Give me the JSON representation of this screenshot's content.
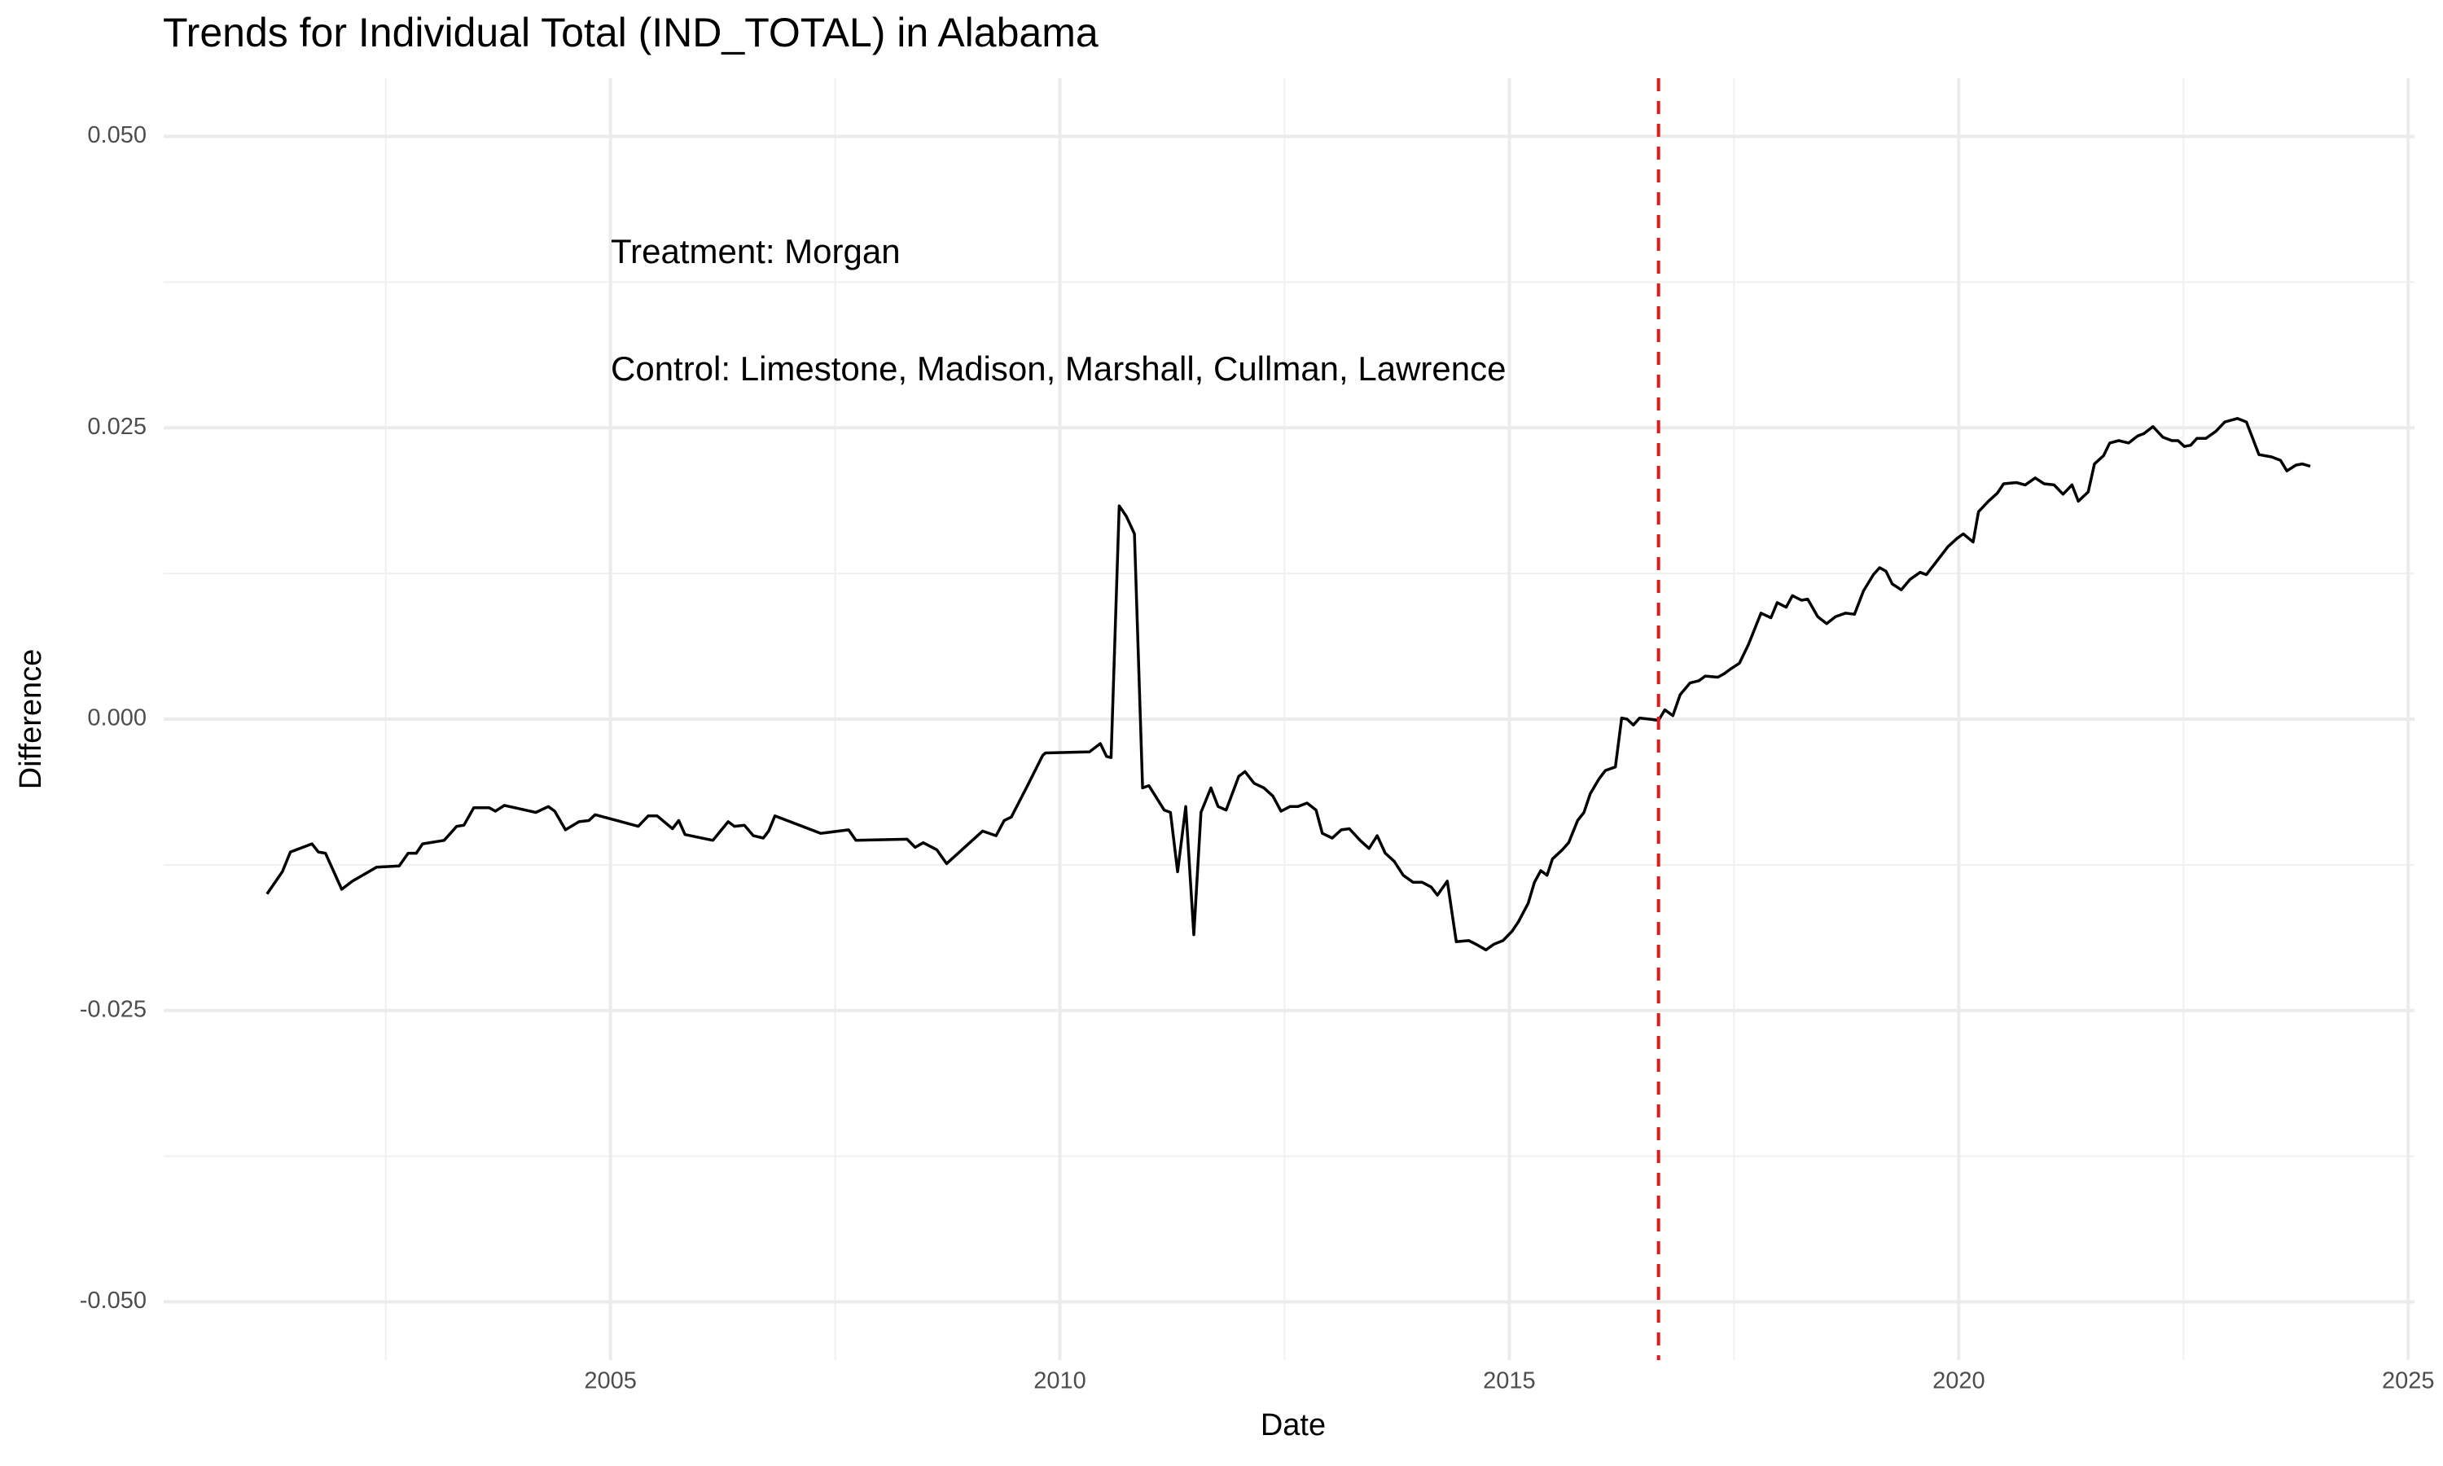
{
  "chart_data": {
    "type": "line",
    "title": "Trends for Individual Total (IND_TOTAL) in Alabama",
    "x_label": "Date",
    "y_label": "Difference",
    "annotations": [
      "Treatment: Morgan",
      "Control: Limestone, Madison, Marshall, Cullman, Lawrence"
    ],
    "color": "#000000",
    "vline": {
      "x": 2016.66,
      "color": "#e31a1c",
      "style": "dashed"
    },
    "grid": true,
    "minor_grid": true,
    "xlim": [
      2000.03,
      2025.07
    ],
    "ylim": [
      -0.055,
      0.055
    ],
    "xticks": [
      2005,
      2010,
      2015,
      2020,
      2025
    ],
    "yticks": [
      {
        "value": -0.05,
        "label": "-0.050"
      },
      {
        "value": -0.025,
        "label": "-0.025"
      },
      {
        "value": 0,
        "label": "0.000"
      },
      {
        "value": 0.025,
        "label": "0.025"
      },
      {
        "value": 0.05,
        "label": "0.050"
      }
    ],
    "x": [
      2001.18,
      2001.35,
      2001.44,
      2001.68,
      2001.75,
      2001.83,
      2002.01,
      2002.13,
      2002.4,
      2002.65,
      2002.75,
      2002.84,
      2002.91,
      2003.15,
      2003.29,
      2003.37,
      2003.48,
      2003.65,
      2003.72,
      2003.82,
      2004.17,
      2004.31,
      2004.38,
      2004.5,
      2004.65,
      2004.76,
      2004.83,
      2005.31,
      2005.42,
      2005.52,
      2005.69,
      2005.76,
      2005.83,
      2006.14,
      2006.31,
      2006.38,
      2006.49,
      2006.59,
      2006.7,
      2006.76,
      2006.83,
      2007.34,
      2007.65,
      2007.73,
      2008.3,
      2008.39,
      2008.48,
      2008.63,
      2008.74,
      2009.14,
      2009.29,
      2009.38,
      2009.46,
      2009.64,
      2009.81,
      2009.84,
      2010.33,
      2010.45,
      2010.52,
      2010.57,
      2010.66,
      2010.74,
      2010.83,
      2010.92,
      2010.99,
      2011.16,
      2011.23,
      2011.31,
      2011.4,
      2011.49,
      2011.57,
      2011.68,
      2011.76,
      2011.85,
      2011.99,
      2012.06,
      2012.16,
      2012.27,
      2012.37,
      2012.46,
      2012.56,
      2012.65,
      2012.75,
      2012.85,
      2012.92,
      2013.03,
      2013.13,
      2013.22,
      2013.34,
      2013.44,
      2013.53,
      2013.62,
      2013.72,
      2013.82,
      2013.93,
      2014.03,
      2014.13,
      2014.2,
      2014.31,
      2014.41,
      2014.55,
      2014.65,
      2014.74,
      2014.83,
      2014.93,
      2015.03,
      2015.1,
      2015.21,
      2015.28,
      2015.35,
      2015.42,
      2015.48,
      2015.59,
      2015.66,
      2015.76,
      2015.83,
      2015.9,
      2016.0,
      2016.07,
      2016.18,
      2016.25,
      2016.31,
      2016.38,
      2016.45,
      2016.56,
      2016.66,
      2016.73,
      2016.82,
      2016.9,
      2017.01,
      2017.11,
      2017.18,
      2017.32,
      2017.39,
      2017.46,
      2017.56,
      2017.66,
      2017.8,
      2017.91,
      2017.98,
      2018.08,
      2018.15,
      2018.25,
      2018.32,
      2018.43,
      2018.53,
      2018.63,
      2018.74,
      2018.84,
      2018.94,
      2019.05,
      2019.12,
      2019.19,
      2019.26,
      2019.36,
      2019.46,
      2019.57,
      2019.64,
      2019.78,
      2019.88,
      2019.98,
      2020.05,
      2020.16,
      2020.22,
      2020.33,
      2020.43,
      2020.5,
      2020.64,
      2020.74,
      2020.85,
      2020.95,
      2021.06,
      2021.16,
      2021.26,
      2021.33,
      2021.44,
      2021.51,
      2021.61,
      2021.68,
      2021.78,
      2021.89,
      2021.99,
      2022.06,
      2022.16,
      2022.27,
      2022.37,
      2022.44,
      2022.51,
      2022.58,
      2022.65,
      2022.75,
      2022.86,
      2022.96,
      2023.1,
      2023.2,
      2023.34,
      2023.48,
      2023.58,
      2023.65,
      2023.75,
      2023.82,
      2023.91
    ],
    "values": [
      -0.015,
      -0.0131,
      -0.0114,
      -0.0107,
      -0.0114,
      -0.0115,
      -0.0146,
      -0.0139,
      -0.0127,
      -0.0126,
      -0.0115,
      -0.0115,
      -0.0107,
      -0.0104,
      -0.0092,
      -0.0091,
      -0.0076,
      -0.0076,
      -0.0079,
      -0.0074,
      -0.008,
      -0.0075,
      -0.0079,
      -0.0095,
      -0.0088,
      -0.0087,
      -0.0082,
      -0.0092,
      -0.0083,
      -0.0083,
      -0.0094,
      -0.0087,
      -0.0099,
      -0.0104,
      -0.0088,
      -0.0092,
      -0.0091,
      -0.01,
      -0.0102,
      -0.0096,
      -0.0083,
      -0.0098,
      -0.0095,
      -0.0104,
      -0.0103,
      -0.011,
      -0.0106,
      -0.0112,
      -0.0124,
      -0.0096,
      -0.01,
      -0.0087,
      -0.0084,
      -0.0057,
      -0.0031,
      -0.0029,
      -0.0028,
      -0.0021,
      -0.0032,
      -0.0033,
      0.0183,
      0.0174,
      0.0159,
      -0.0059,
      -0.0057,
      -0.0078,
      -0.008,
      -0.0131,
      -0.0075,
      -0.0185,
      -0.008,
      -0.0059,
      -0.0075,
      -0.0078,
      -0.0049,
      -0.0045,
      -0.0055,
      -0.0059,
      -0.0066,
      -0.0079,
      -0.0075,
      -0.0075,
      -0.0072,
      -0.0078,
      -0.0098,
      -0.0102,
      -0.0095,
      -0.0094,
      -0.0104,
      -0.0111,
      -0.01,
      -0.0115,
      -0.0122,
      -0.0134,
      -0.014,
      -0.014,
      -0.0144,
      -0.0151,
      -0.0139,
      -0.0191,
      -0.019,
      -0.0194,
      -0.0198,
      -0.0193,
      -0.019,
      -0.0182,
      -0.0174,
      -0.0158,
      -0.014,
      -0.013,
      -0.0134,
      -0.012,
      -0.0112,
      -0.0106,
      -0.0087,
      -0.008,
      -0.0064,
      -0.0051,
      -0.0044,
      -0.0041,
      0.0001,
      0.0,
      -0.0005,
      0.0001,
      0.0,
      -0.0001,
      0.0008,
      0.0003,
      0.0021,
      0.0031,
      0.0033,
      0.0037,
      0.0036,
      0.0039,
      0.0043,
      0.0048,
      0.0064,
      0.0091,
      0.0087,
      0.01,
      0.0096,
      0.0106,
      0.0102,
      0.0103,
      0.0088,
      0.0082,
      0.0088,
      0.0091,
      0.009,
      0.011,
      0.0124,
      0.013,
      0.0127,
      0.0116,
      0.0111,
      0.012,
      0.0126,
      0.0124,
      0.0138,
      0.0148,
      0.0155,
      0.0159,
      0.0152,
      0.0178,
      0.0187,
      0.0194,
      0.0202,
      0.0203,
      0.0201,
      0.0207,
      0.0202,
      0.0201,
      0.0193,
      0.0201,
      0.0187,
      0.0195,
      0.0219,
      0.0226,
      0.0237,
      0.0239,
      0.0237,
      0.0243,
      0.0245,
      0.0251,
      0.0242,
      0.0239,
      0.0239,
      0.0234,
      0.0235,
      0.0241,
      0.0241,
      0.0247,
      0.0255,
      0.0258,
      0.0255,
      0.0227,
      0.0225,
      0.0222,
      0.0213,
      0.0218,
      0.0219,
      0.0217
    ]
  }
}
